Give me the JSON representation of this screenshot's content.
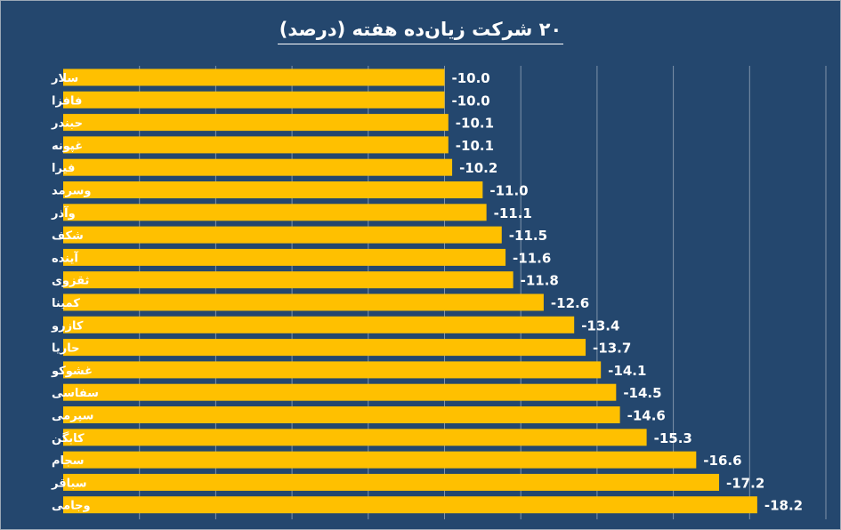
{
  "chart_data": {
    "type": "bar",
    "orientation": "horizontal",
    "title": "۲۰ شرکت زیان‌ده هفته (درصد)",
    "categories": [
      "سلار",
      "فافزا",
      "حبندر",
      "غپونه",
      "فیرا",
      "وسرمد",
      "وآذر",
      "شکف",
      "آینده",
      "ثقزوی",
      "کمینا",
      "کازرو",
      "حاریا",
      "غشوکو",
      "سفاسی",
      "سپرمی",
      "کابگن",
      "سجام",
      "سباقر",
      "وجامی"
    ],
    "values": [
      -10.0,
      -10.0,
      -10.1,
      -10.1,
      -10.2,
      -11.0,
      -11.1,
      -11.5,
      -11.6,
      -11.8,
      -12.6,
      -13.4,
      -13.7,
      -14.1,
      -14.5,
      -14.6,
      -15.3,
      -16.6,
      -17.2,
      -18.2
    ],
    "value_labels": [
      "-10.0",
      "-10.0",
      "-10.1",
      "-10.1",
      "-10.2",
      "-11.0",
      "-11.1",
      "-11.5",
      "-11.6",
      "-11.8",
      "-12.6",
      "-13.4",
      "-13.7",
      "-14.1",
      "-14.5",
      "-14.6",
      "-15.3",
      "-16.6",
      "-17.2",
      "-18.2"
    ],
    "xlim": [
      0,
      -20
    ],
    "grid": true,
    "bar_color": "#ffc000",
    "background_color": "#24476e",
    "grid_color": "#7f93ab",
    "text_color": "#ffffff"
  }
}
